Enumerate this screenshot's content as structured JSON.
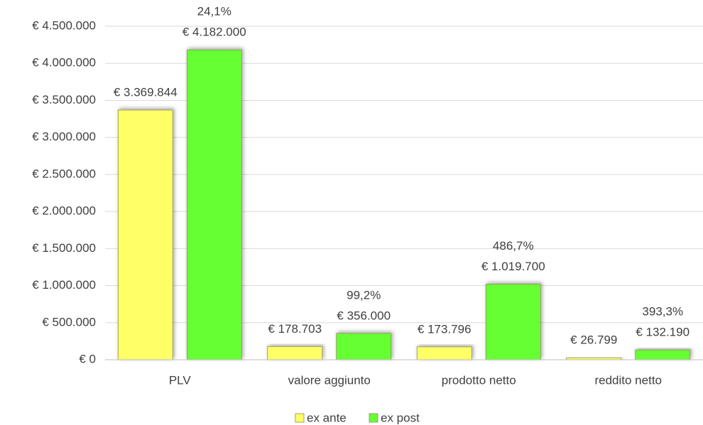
{
  "chart_data": {
    "type": "bar",
    "categories": [
      "PLV",
      "valore aggiunto",
      "prodotto netto",
      "reddito netto"
    ],
    "series": [
      {
        "name": "ex ante",
        "color": "#ffff66",
        "values": [
          3369844,
          178703,
          173796,
          26799
        ],
        "value_labels": [
          "€ 3.369.844",
          "€ 178.703",
          "€ 173.796",
          "€ 26.799"
        ]
      },
      {
        "name": "ex post",
        "color": "#66ff33",
        "values": [
          4182000,
          356000,
          1019700,
          132190
        ],
        "value_labels": [
          "€ 4.182.000",
          "€ 356.000",
          "€ 1.019.700",
          "€ 132.190"
        ]
      }
    ],
    "annotations": [
      "24,1%",
      "99,2%",
      "486,7%",
      "393,3%"
    ],
    "ylim": [
      0,
      4500000
    ],
    "yticks": [
      {
        "value": 0,
        "label": "€ 0"
      },
      {
        "value": 500000,
        "label": "€ 500.000"
      },
      {
        "value": 1000000,
        "label": "€ 1.000.000"
      },
      {
        "value": 1500000,
        "label": "€ 1.500.000"
      },
      {
        "value": 2000000,
        "label": "€ 2.000.000"
      },
      {
        "value": 2500000,
        "label": "€ 2.500.000"
      },
      {
        "value": 3000000,
        "label": "€ 3.000.000"
      },
      {
        "value": 3500000,
        "label": "€ 3.500.000"
      },
      {
        "value": 4000000,
        "label": "€ 4.000.000"
      },
      {
        "value": 4500000,
        "label": "€ 4.500.000"
      }
    ],
    "grid": true,
    "legend": "bottom"
  }
}
